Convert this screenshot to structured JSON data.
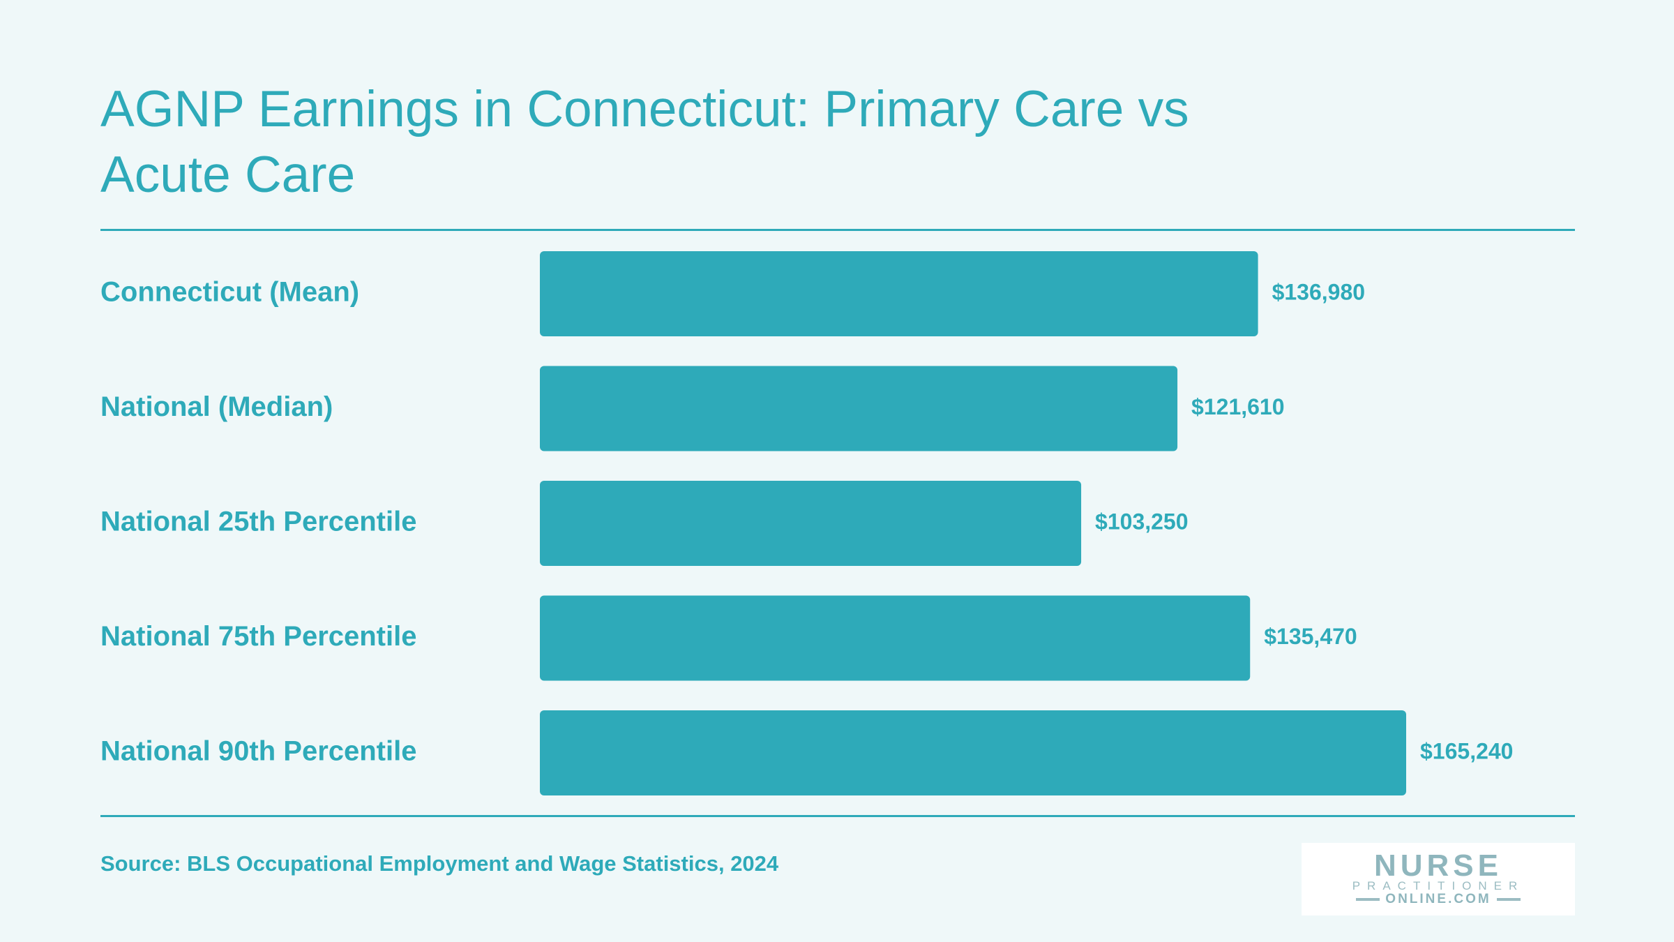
{
  "title": "AGNP Earnings in Connecticut: Primary Care vs Acute Care",
  "source": "Source: BLS Occupational Employment and Wage Statistics, 2024",
  "logo": {
    "line1": "NURSE",
    "line2": "PRACTITIONER",
    "line3": "ONLINE.COM"
  },
  "colors": {
    "accent": "#2eaab9",
    "background": "#eff8f9"
  },
  "chart_data": {
    "type": "bar",
    "orientation": "horizontal",
    "title": "AGNP Earnings in Connecticut: Primary Care vs Acute Care",
    "categories": [
      "Connecticut (Mean)",
      "National (Median)",
      "National 25th Percentile",
      "National 75th Percentile",
      "National 90th Percentile"
    ],
    "values": [
      136980,
      121610,
      103250,
      135470,
      165240
    ],
    "value_labels": [
      "$136,980",
      "$121,610",
      "$103,250",
      "$135,470",
      "$165,240"
    ],
    "grid": false,
    "legend": "none"
  }
}
